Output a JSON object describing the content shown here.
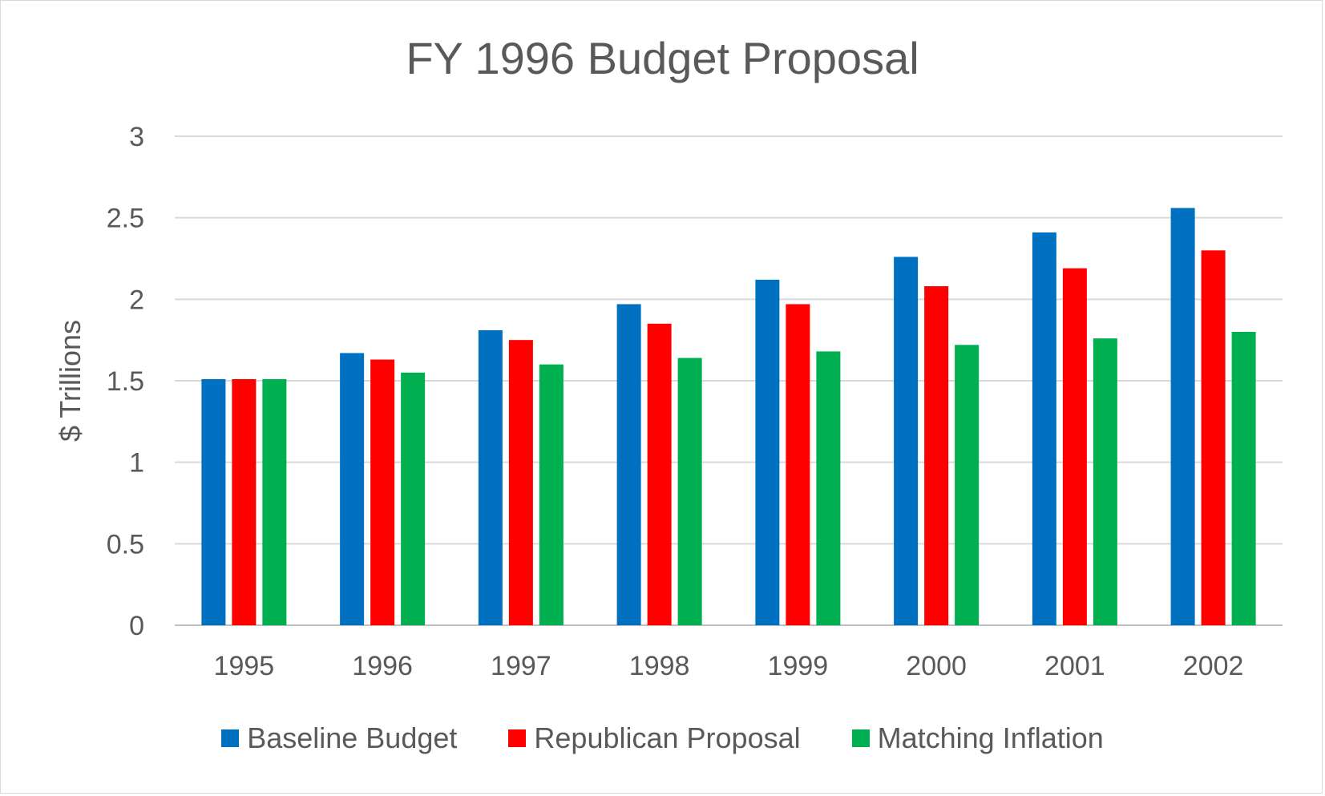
{
  "chart_data": {
    "type": "bar",
    "title": "FY 1996 Budget Proposal",
    "xlabel": "",
    "ylabel": "$ Trillions",
    "ylim": [
      0,
      3
    ],
    "yticks": [
      "0",
      "0.5",
      "1",
      "1.5",
      "2",
      "2.5",
      "3"
    ],
    "grid": true,
    "legend_position": "bottom",
    "categories": [
      "1995",
      "1996",
      "1997",
      "1998",
      "1999",
      "2000",
      "2001",
      "2002"
    ],
    "series": [
      {
        "name": "Baseline Budget",
        "color": "#0070c0",
        "values": [
          1.51,
          1.67,
          1.81,
          1.97,
          2.12,
          2.26,
          2.41,
          2.56
        ]
      },
      {
        "name": "Republican Proposal",
        "color": "#ff0000",
        "values": [
          1.51,
          1.63,
          1.75,
          1.85,
          1.97,
          2.08,
          2.19,
          2.3
        ]
      },
      {
        "name": "Matching Inflation",
        "color": "#00b050",
        "values": [
          1.51,
          1.55,
          1.6,
          1.64,
          1.68,
          1.72,
          1.76,
          1.8
        ]
      }
    ]
  }
}
